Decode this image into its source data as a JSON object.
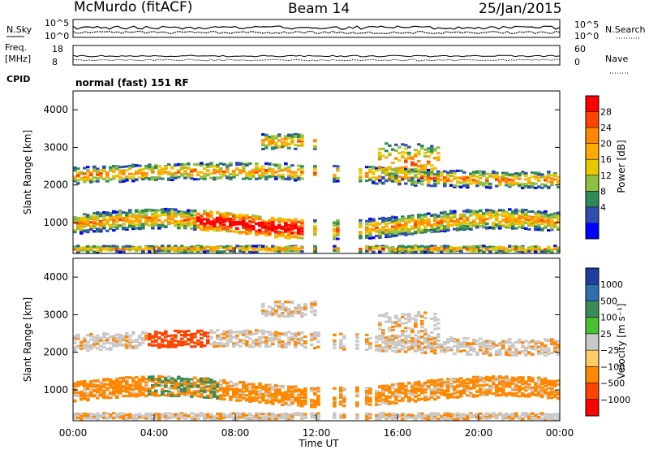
{
  "header": {
    "station": "McMurdo (fitACF)",
    "beam": "Beam 14",
    "date": "25/Jan/2015"
  },
  "status_panel": {
    "left_labels": [
      "N.Sky",
      "Freq.",
      "[MHz]",
      "CPID"
    ],
    "right_labels": [
      "N.Search",
      "Nave"
    ],
    "nsky_ticks": [
      "10^5",
      "10^0"
    ],
    "nsearch_ticks": [
      "10^5",
      "10^0"
    ],
    "freq_ticks": [
      "18",
      "8"
    ],
    "nave_ticks": [
      "60",
      "0"
    ],
    "cpid_text": "normal (fast) 151 RF"
  },
  "chart_data": [
    {
      "type": "heatmap",
      "name": "power",
      "ylabel": "Slant Range [km]",
      "y_ticks": [
        "1000",
        "2000",
        "3000",
        "4000"
      ],
      "ylim": [
        180,
        4500
      ],
      "colorbar_label": "Power [dB]",
      "colorbar_ticks": [
        "28",
        "24",
        "20",
        "16",
        "12",
        "8",
        "4"
      ],
      "colorbar_colors": [
        "#ff0000",
        "#ff4400",
        "#ff8800",
        "#ffaa00",
        "#e8c800",
        "#90c040",
        "#2e8b57",
        "#2f4faf",
        "#0000ff"
      ],
      "x_ticks": [
        "00:00",
        "04:00",
        "08:00",
        "12:00",
        "16:00",
        "20:00",
        "00:00"
      ]
    },
    {
      "type": "heatmap",
      "name": "velocity",
      "ylabel": "Slant Range [km]",
      "y_ticks": [
        "1000",
        "2000",
        "3000",
        "4000"
      ],
      "ylim": [
        180,
        4500
      ],
      "colorbar_label": "Velocity [m s⁻¹]",
      "colorbar_ticks": [
        "1000",
        "500",
        "100",
        "25",
        "−25",
        "−100",
        "−500",
        "−1000"
      ],
      "colorbar_colors": [
        "#1f3fa0",
        "#2f6fb0",
        "#3c8c5a",
        "#48c030",
        "#c8c8c8",
        "#ffcc66",
        "#ff8800",
        "#ff4400",
        "#ff0000"
      ],
      "x_ticks": [
        "00:00",
        "04:00",
        "08:00",
        "12:00",
        "16:00",
        "20:00",
        "00:00"
      ],
      "xlabel": "Time UT"
    }
  ]
}
